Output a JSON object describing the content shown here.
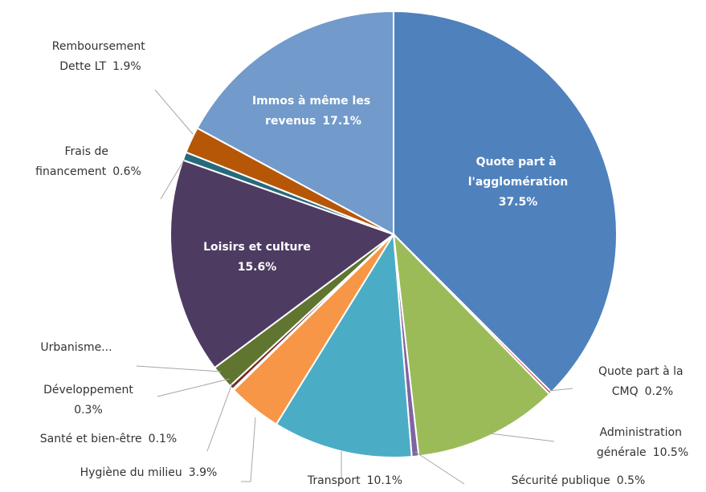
{
  "chart_data": {
    "type": "pie",
    "categories": [
      "Quote part à l'agglomération",
      "Quote part à la CMQ",
      "Administration générale",
      "Sécurité publique",
      "Transport",
      "Hygiène du milieu",
      "Santé et bien-être",
      "Développement",
      "Urbanisme...",
      "Loisirs et culture",
      "Frais de financement",
      "Remboursement Dette LT",
      "Immos à même les revenus"
    ],
    "values": [
      37.5,
      0.2,
      10.5,
      0.5,
      10.1,
      3.9,
      0.1,
      0.3,
      1.7,
      15.6,
      0.6,
      1.9,
      17.1
    ],
    "value_labels": [
      "37.5%",
      "0.2%",
      "10.5%",
      "0.5%",
      "10.1%",
      "3.9%",
      "0.1%",
      "0.3%",
      null,
      "15.6%",
      "0.6%",
      "1.9%",
      "17.1%"
    ],
    "colors": [
      "#4f81bd",
      "#c0504d",
      "#9bbb59",
      "#8064a2",
      "#4bacc6",
      "#f79646",
      "#2c4d75",
      "#772c2a",
      "#5f7530",
      "#4d3b62",
      "#276a7c",
      "#b65708",
      "#729aca"
    ]
  }
}
